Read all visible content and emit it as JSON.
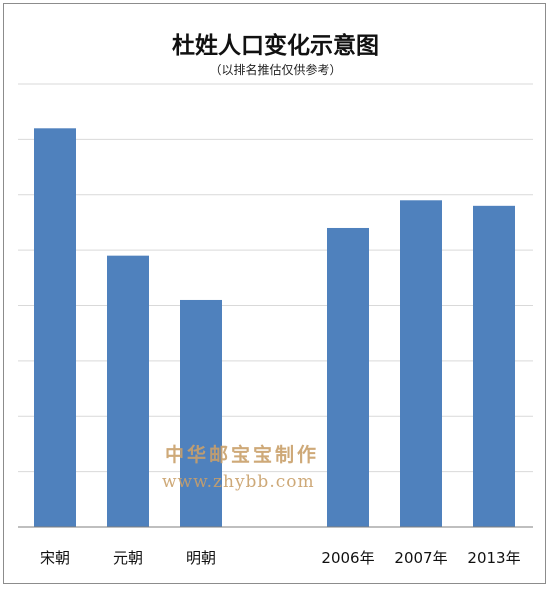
{
  "chart_data": {
    "type": "bar",
    "title": "杜姓人口变化示意图",
    "subtitle": "（以排名推估仅供参考）",
    "categories": [
      "宋朝",
      "元朝",
      "明朝",
      "2006年",
      "2007年",
      "2013年"
    ],
    "values": [
      7.2,
      4.9,
      4.1,
      5.4,
      5.9,
      5.8
    ],
    "ylim": [
      0,
      8
    ],
    "grid": true,
    "colors": {
      "bar": "#4f81bd",
      "grid": "#d9d9d9",
      "axis": "#7f7f7f"
    }
  },
  "watermark": {
    "cn": "中华邮宝宝制作",
    "url": "www.zhybb.com"
  }
}
